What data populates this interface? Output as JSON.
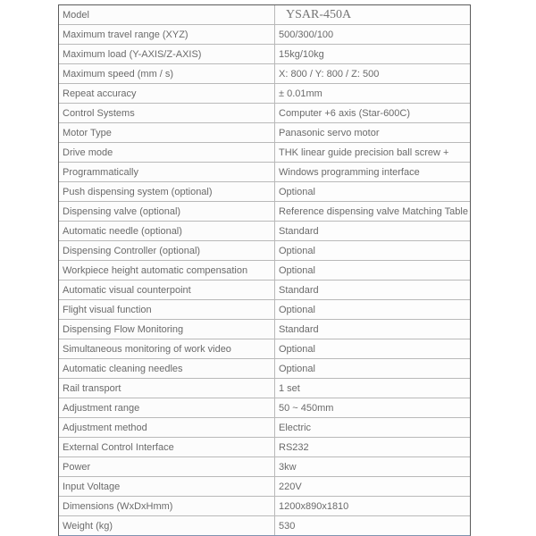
{
  "colors": {
    "outer_border": "#5b5b5b",
    "inner_border": "#b9b9b9",
    "bottom_border": "#8094b0",
    "text": "#6a6a6a",
    "background": "#ffffff"
  },
  "spec_table": {
    "rows": [
      {
        "label": "Model",
        "value": "YSAR-450A",
        "value_style": "model"
      },
      {
        "label": "Maximum travel range (XYZ)",
        "value": "500/300/100"
      },
      {
        "label": "Maximum load (Y-AXIS/Z-AXIS)",
        "value": "15kg/10kg"
      },
      {
        "label": "Maximum speed (mm / s)",
        "value": "X: 800 / Y: 800 / Z: 500"
      },
      {
        "label": "Repeat accuracy",
        "value": "± 0.01mm"
      },
      {
        "label": "Control Systems",
        "value": "Computer +6 axis (Star-600C)"
      },
      {
        "label": "Motor Type",
        "value": "Panasonic servo motor"
      },
      {
        "label": "Drive mode",
        "value": "THK linear guide precision ball screw +"
      },
      {
        "label": "Programmatically",
        "value": "Windows programming interface"
      },
      {
        "label": "Push dispensing system (optional)",
        "value": "Optional"
      },
      {
        "label": "Dispensing valve (optional)",
        "value": "Reference dispensing valve Matching Table"
      },
      {
        "label": "Automatic needle (optional)",
        "value": "Standard"
      },
      {
        "label": "Dispensing Controller (optional)",
        "value": "Optional"
      },
      {
        "label": "Workpiece height automatic compensation",
        "value": "Optional"
      },
      {
        "label": "Automatic visual counterpoint",
        "value": "Standard"
      },
      {
        "label": "Flight visual function",
        "value": "Optional"
      },
      {
        "label": "Dispensing Flow Monitoring",
        "value": "Standard"
      },
      {
        "label": "Simultaneous monitoring of work video",
        "value": "Optional"
      },
      {
        "label": "Automatic cleaning needles",
        "value": "Optional"
      },
      {
        "label": "Rail transport",
        "value": "1 set"
      },
      {
        "label": "Adjustment range",
        "value": "50 ~ 450mm"
      },
      {
        "label": "Adjustment method",
        "value": "Electric"
      },
      {
        "label": "External Control Interface",
        "value": "RS232"
      },
      {
        "label": "Power",
        "value": "3kw"
      },
      {
        "label": "Input Voltage",
        "value": "220V"
      },
      {
        "label": "Dimensions (WxDxHmm)",
        "value": "1200x890x1810"
      },
      {
        "label": "Weight (kg)",
        "value": "530"
      }
    ]
  }
}
